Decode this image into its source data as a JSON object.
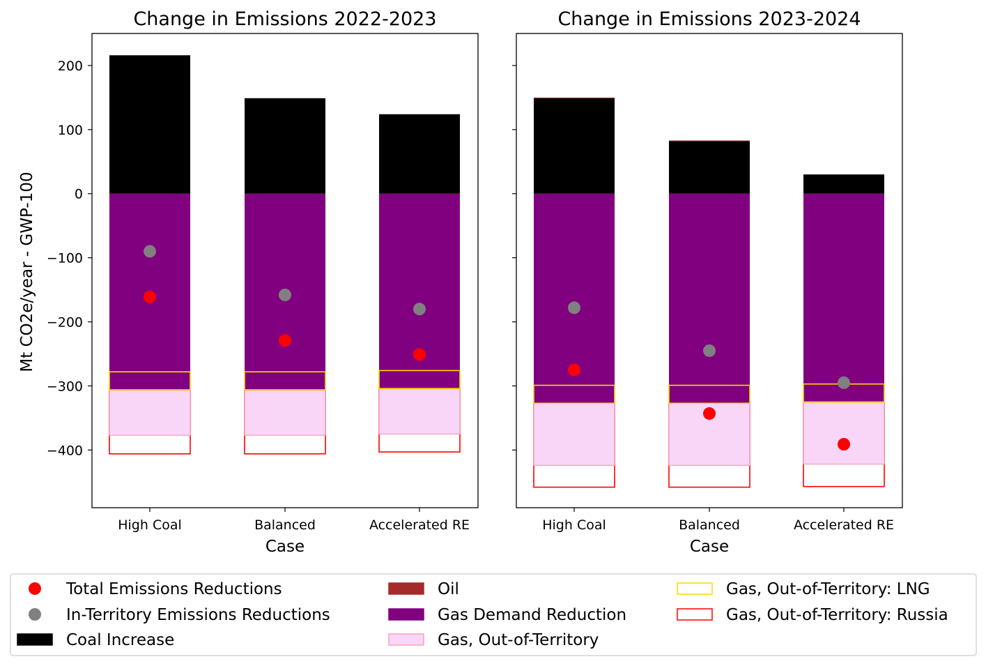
{
  "chart_data": [
    {
      "type": "bar",
      "title": "Change in Emissions 2022-2023",
      "xlabel": "Case",
      "ylabel": "Mt CO2e/year - GWP-100",
      "ylim": [
        -490,
        250
      ],
      "yticks": [
        200,
        100,
        0,
        -100,
        -200,
        -300,
        -400
      ],
      "ytick_labels": [
        "200",
        "100",
        "0",
        "−100",
        "−200",
        "−300",
        "−400"
      ],
      "categories": [
        "High Coal",
        "Balanced",
        "Accelerated RE"
      ],
      "coal_increase": [
        216,
        149,
        124
      ],
      "oil": [
        0,
        0,
        0
      ],
      "gas_demand_reduction": [
        -306,
        -306,
        -304
      ],
      "gas_oot_lng": [
        -278,
        -278,
        -276
      ],
      "gas_oot": [
        -377,
        -377,
        -375
      ],
      "gas_oot_russia": [
        -406,
        -406,
        -403
      ],
      "total_emissions_reductions": [
        -161,
        -229,
        -251
      ],
      "in_territory_emissions_reductions": [
        -90,
        -158,
        -180
      ]
    },
    {
      "type": "bar",
      "title": "Change in Emissions 2023-2024",
      "xlabel": "Case",
      "ylabel": "",
      "ylim": [
        -490,
        250
      ],
      "yticks": [
        200,
        100,
        0,
        -100,
        -200,
        -300,
        -400
      ],
      "ytick_labels": [],
      "categories": [
        "High Coal",
        "Balanced",
        "Accelerated RE"
      ],
      "coal_increase": [
        149,
        82,
        30
      ],
      "oil": [
        1,
        1,
        0
      ],
      "gas_demand_reduction": [
        -327,
        -327,
        -325
      ],
      "gas_oot_lng": [
        -299,
        -299,
        -297
      ],
      "gas_oot": [
        -424,
        -424,
        -422
      ],
      "gas_oot_russia": [
        -458,
        -458,
        -457
      ],
      "total_emissions_reductions": [
        -275,
        -343,
        -391
      ],
      "in_territory_emissions_reductions": [
        -178,
        -245,
        -295
      ]
    }
  ],
  "legend": {
    "placement": "bottom",
    "items": [
      {
        "label": "Total Emissions Reductions",
        "kind": "dot",
        "color": "#ff0000"
      },
      {
        "label": "In-Territory Emissions Reductions",
        "kind": "dot",
        "color": "#808080"
      },
      {
        "label": "Coal Increase",
        "kind": "patch",
        "color": "#000000",
        "edge": "#000000"
      },
      {
        "label": "Oil",
        "kind": "patch",
        "color": "#a52a2a",
        "edge": "#a52a2a"
      },
      {
        "label": "Gas Demand Reduction",
        "kind": "patch",
        "color": "#800080",
        "edge": "#800080"
      },
      {
        "label": "Gas, Out-of-Territory",
        "kind": "patch",
        "color": "#f9d6f7",
        "edge": "#f4a3b8"
      },
      {
        "label": "Gas, Out-of-Territory: LNG",
        "kind": "outline",
        "color": "none",
        "edge": "#ffd700"
      },
      {
        "label": "Gas, Out-of-Territory: Russia",
        "kind": "outline",
        "color": "none",
        "edge": "#ff0000"
      }
    ]
  },
  "colors": {
    "coal": "#000000",
    "oil": "#a52a2a",
    "gas_demand_reduction": "#800080",
    "gas_oot_fill": "#f9d6f7",
    "gas_oot_edge": "#f4a3b8",
    "lng_edge": "#ffd700",
    "russia_edge": "#ff0000",
    "total_dot": "#ff0000",
    "in_territory_dot": "#808080"
  }
}
